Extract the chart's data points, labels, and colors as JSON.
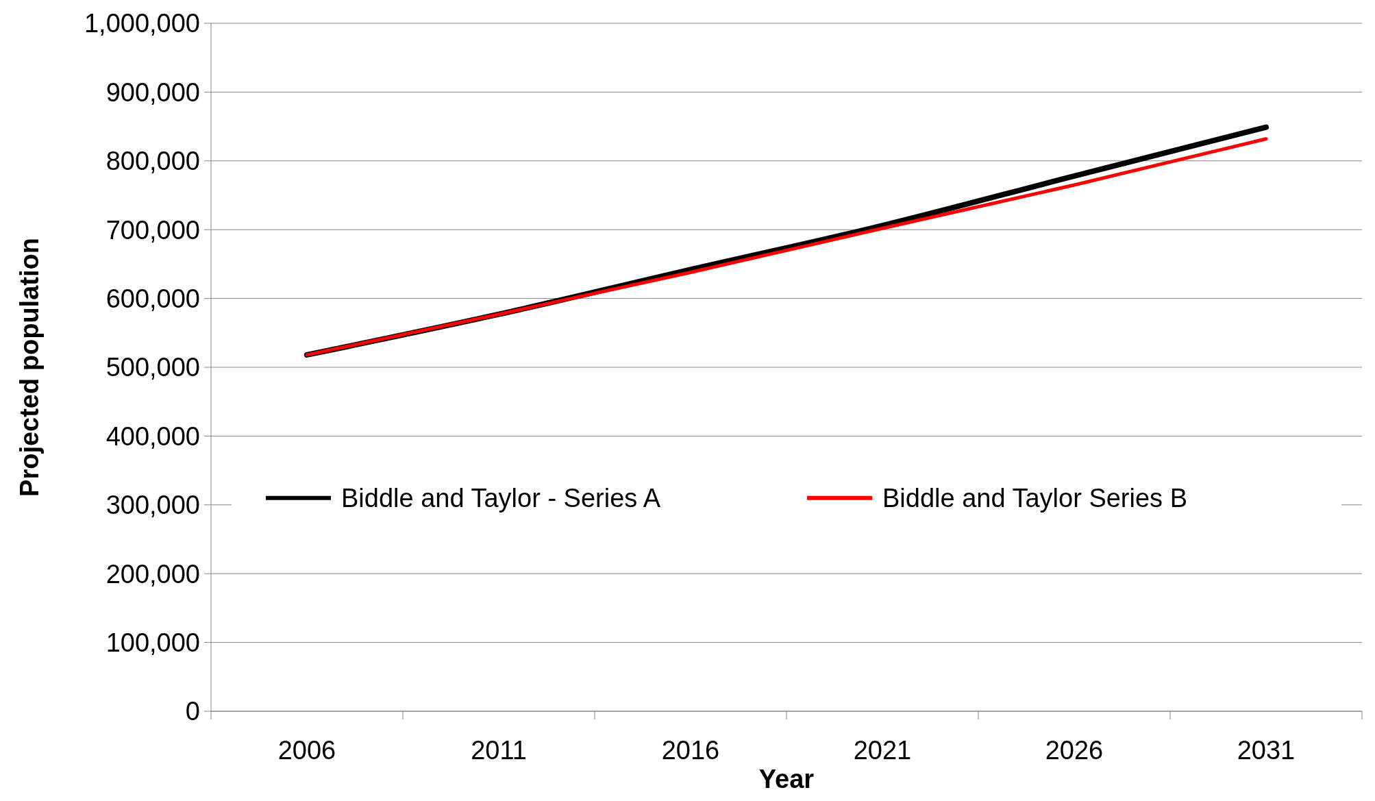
{
  "chart_data": {
    "type": "line",
    "xlabel": "Year",
    "ylabel": "Projected population",
    "categories": [
      "2006",
      "2011",
      "2016",
      "2021",
      "2026",
      "2031"
    ],
    "series": [
      {
        "name": "Biddle and Taylor - Series A",
        "color": "#000000",
        "values": [
          518000,
          577000,
          642000,
          706000,
          778000,
          849000
        ]
      },
      {
        "name": "Biddle and Taylor Series B",
        "color": "#ff0000",
        "values": [
          518000,
          577000,
          638000,
          702000,
          765000,
          832000
        ]
      }
    ],
    "ylim": [
      0,
      1000000
    ],
    "yticks": [
      {
        "value": 0,
        "label": "0"
      },
      {
        "value": 100000,
        "label": "100,000"
      },
      {
        "value": 200000,
        "label": "200,000"
      },
      {
        "value": 300000,
        "label": "300,000"
      },
      {
        "value": 400000,
        "label": "400,000"
      },
      {
        "value": 500000,
        "label": "500,000"
      },
      {
        "value": 600000,
        "label": "600,000"
      },
      {
        "value": 700000,
        "label": "700,000"
      },
      {
        "value": 800000,
        "label": "800,000"
      },
      {
        "value": 900000,
        "label": "900,000"
      },
      {
        "value": 1000000,
        "label": "1,000,000"
      }
    ],
    "grid": "y",
    "legend": "center",
    "marker": "none",
    "line_style": "solid"
  }
}
